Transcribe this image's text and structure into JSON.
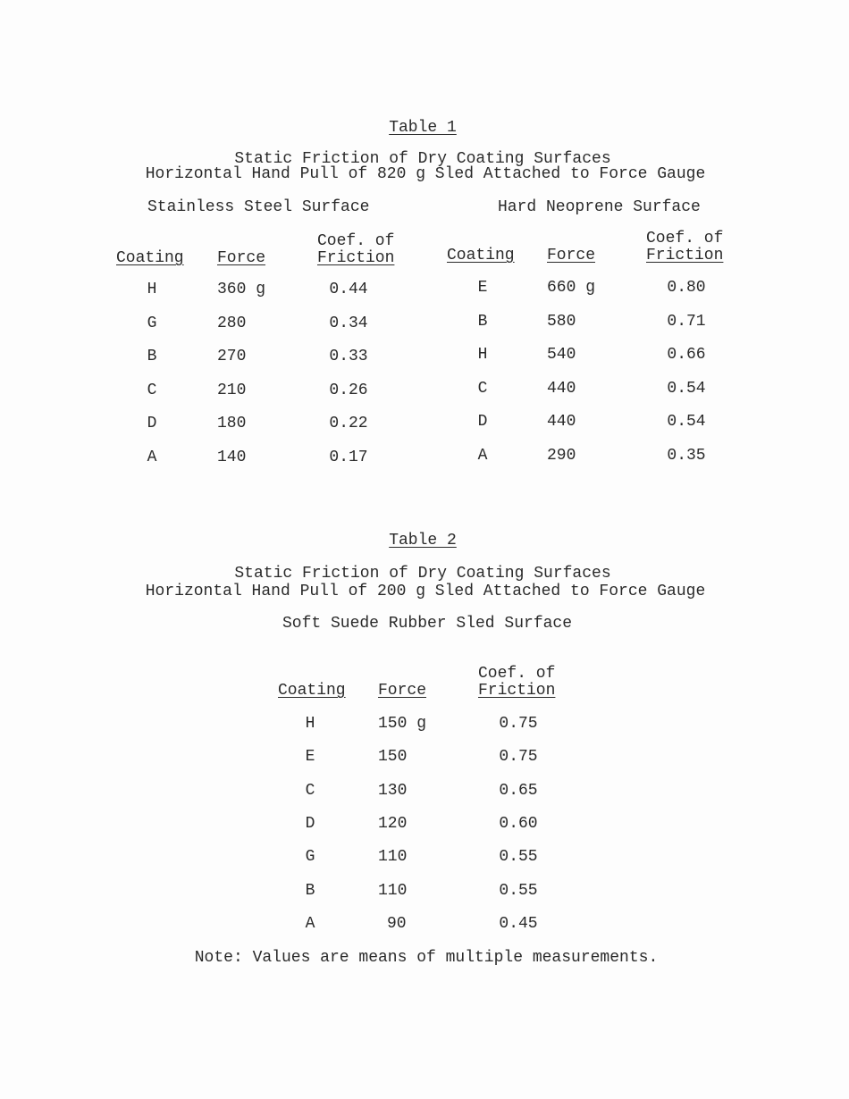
{
  "table1": {
    "title": "Table 1",
    "subtitle_line1": "Static Friction of Dry Coating Surfaces",
    "subtitle_line2": "Horizontal Hand Pull of 820 g Sled Attached to Force Gauge",
    "left": {
      "surface": "Stainless Steel Surface",
      "headers": {
        "coating": "Coating",
        "force": "Force",
        "coef_line1": "Coef. of",
        "coef_line2": "Friction"
      },
      "rows": [
        {
          "coating": "H",
          "force": "360 g",
          "coef": "0.44"
        },
        {
          "coating": "G",
          "force": "280",
          "coef": "0.34"
        },
        {
          "coating": "B",
          "force": "270",
          "coef": "0.33"
        },
        {
          "coating": "C",
          "force": "210",
          "coef": "0.26"
        },
        {
          "coating": "D",
          "force": "180",
          "coef": "0.22"
        },
        {
          "coating": "A",
          "force": "140",
          "coef": "0.17"
        }
      ]
    },
    "right": {
      "surface": "Hard Neoprene Surface",
      "headers": {
        "coating": "Coating",
        "force": "Force",
        "coef_line1": "Coef. of",
        "coef_line2": "Friction"
      },
      "rows": [
        {
          "coating": "E",
          "force": "660 g",
          "coef": "0.80"
        },
        {
          "coating": "B",
          "force": "580",
          "coef": "0.71"
        },
        {
          "coating": "H",
          "force": "540",
          "coef": "0.66"
        },
        {
          "coating": "C",
          "force": "440",
          "coef": "0.54"
        },
        {
          "coating": "D",
          "force": "440",
          "coef": "0.54"
        },
        {
          "coating": "A",
          "force": "290",
          "coef": "0.35"
        }
      ]
    }
  },
  "table2": {
    "title": "Table 2",
    "subtitle_line1": "Static Friction of Dry Coating Surfaces",
    "subtitle_line2": "Horizontal Hand Pull of 200 g Sled Attached to Force Gauge",
    "surface": "Soft Suede Rubber Sled Surface",
    "headers": {
      "coating": "Coating",
      "force": "Force",
      "coef_line1": "Coef. of",
      "coef_line2": "Friction"
    },
    "rows": [
      {
        "coating": "H",
        "force": "150 g",
        "coef": "0.75"
      },
      {
        "coating": "E",
        "force": "150",
        "coef": "0.75"
      },
      {
        "coating": "C",
        "force": "130",
        "coef": "0.65"
      },
      {
        "coating": "D",
        "force": "120",
        "coef": "0.60"
      },
      {
        "coating": "G",
        "force": "110",
        "coef": "0.55"
      },
      {
        "coating": "B",
        "force": "110",
        "coef": "0.55"
      },
      {
        "coating": "A",
        "force": "90",
        "coef": "0.45"
      }
    ]
  },
  "note": "Note: Values are means of multiple measurements."
}
